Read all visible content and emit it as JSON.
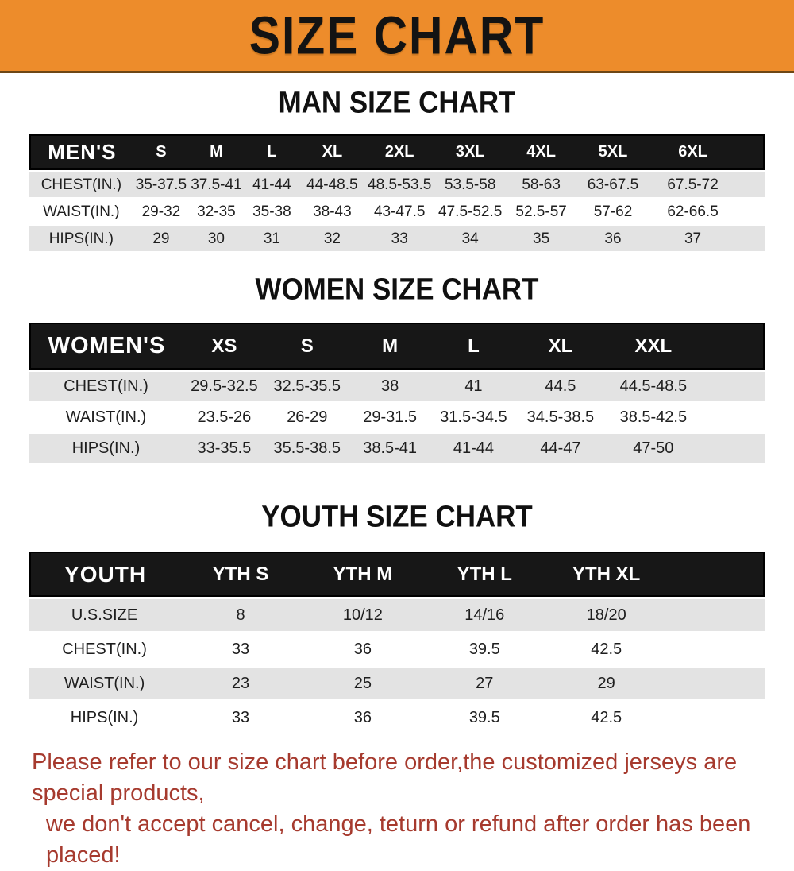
{
  "banner": {
    "title": "SIZE CHART",
    "bg_color": "#ED8C2B"
  },
  "sections": [
    {
      "title": "MAN SIZE CHART",
      "header_label": "MEN'S",
      "columns": [
        "S",
        "M",
        "L",
        "XL",
        "2XL",
        "3XL",
        "4XL",
        "5XL",
        "6XL"
      ],
      "rows": [
        {
          "label": "CHEST(IN.)",
          "values": [
            "35-37.5",
            "37.5-41",
            "41-44",
            "44-48.5",
            "48.5-53.5",
            "53.5-58",
            "58-63",
            "63-67.5",
            "67.5-72"
          ]
        },
        {
          "label": "WAIST(IN.)",
          "values": [
            "29-32",
            "32-35",
            "35-38",
            "38-43",
            "43-47.5",
            "47.5-52.5",
            "52.5-57",
            "57-62",
            "62-66.5"
          ]
        },
        {
          "label": "HIPS(IN.)",
          "values": [
            "29",
            "30",
            "31",
            "32",
            "33",
            "34",
            "35",
            "36",
            "37"
          ]
        }
      ]
    },
    {
      "title": "WOMEN SIZE CHART",
      "header_label": "WOMEN'S",
      "columns": [
        "XS",
        "S",
        "M",
        "L",
        "XL",
        "XXL"
      ],
      "rows": [
        {
          "label": "CHEST(IN.)",
          "values": [
            "29.5-32.5",
            "32.5-35.5",
            "38",
            "41",
            "44.5",
            "44.5-48.5"
          ]
        },
        {
          "label": "WAIST(IN.)",
          "values": [
            "23.5-26",
            "26-29",
            "29-31.5",
            "31.5-34.5",
            "34.5-38.5",
            "38.5-42.5"
          ]
        },
        {
          "label": "HIPS(IN.)",
          "values": [
            "33-35.5",
            "35.5-38.5",
            "38.5-41",
            "41-44",
            "44-47",
            "47-50"
          ]
        }
      ]
    },
    {
      "title": "YOUTH SIZE CHART",
      "header_label": "YOUTH",
      "columns": [
        "YTH S",
        "YTH M",
        "YTH L",
        "YTH XL"
      ],
      "rows": [
        {
          "label": "U.S.SIZE",
          "values": [
            "8",
            "10/12",
            "14/16",
            "18/20"
          ]
        },
        {
          "label": "CHEST(IN.)",
          "values": [
            "33",
            "36",
            "39.5",
            "42.5"
          ]
        },
        {
          "label": "WAIST(IN.)",
          "values": [
            "23",
            "25",
            "27",
            "29"
          ]
        },
        {
          "label": "HIPS(IN.)",
          "values": [
            "33",
            "36",
            "39.5",
            "42.5"
          ]
        }
      ]
    }
  ],
  "footer": {
    "line1": "Please refer to our size chart before order,the customized jerseys are special products,",
    "line2": "we don't accept cancel, change, teturn or refund after order has been placed!",
    "text_color": "#A63A2E"
  },
  "colors": {
    "header_row_bg": "#171717",
    "stripe_row_bg": "#E3E3E3",
    "title_color": "#101010"
  }
}
